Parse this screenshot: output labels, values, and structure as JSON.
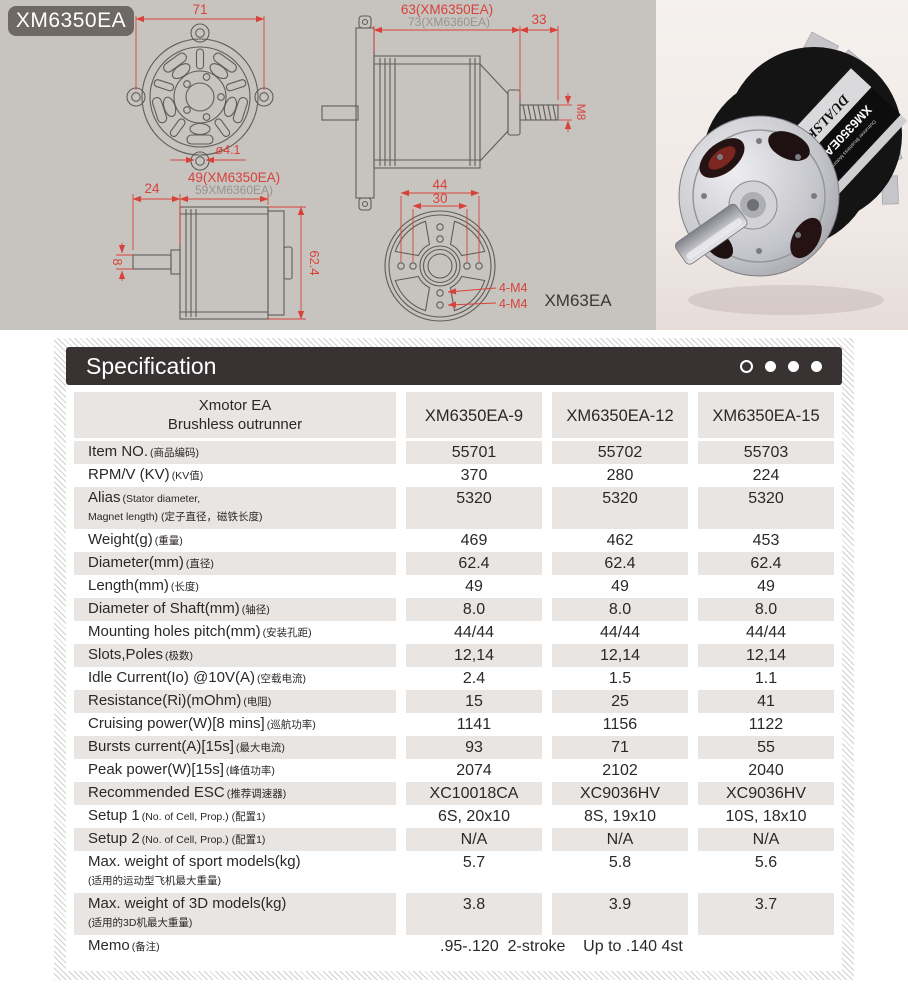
{
  "page": {
    "model_badge": "XM6350EA"
  },
  "drawings": {
    "front": {
      "dim_width": "71",
      "dim_hole": "ø4.1"
    },
    "side_top": {
      "dim_len_a": "63(XM6350EA)",
      "dim_len_b": "73(XM6360EA)",
      "dim_shaft": "33",
      "dim_thread": "M8"
    },
    "side_bottom": {
      "dim_shaft_len": "24",
      "dim_len_a": "49(XM6350EA)",
      "dim_len_b": "59XM6360EA)",
      "dim_shaft_dia": "8",
      "dim_body_dia": "62.4"
    },
    "rear": {
      "dim_outer_pitch": "44",
      "dim_inner_pitch": "30",
      "dim_screws_a": "4-M4",
      "dim_screws_b": "4-M4",
      "view_label": "XM63EA"
    }
  },
  "photo": {
    "brand": "DUALSKY",
    "model": "XM6350EA-15",
    "sub": "Outrunner Brushless Motors",
    "kv": "224rpm/V"
  },
  "spec": {
    "title": "Specification",
    "header": {
      "label_line1": "Xmotor EA",
      "label_line2": "Brushless outrunner",
      "columns": [
        "XM6350EA-9",
        "XM6350EA-12",
        "XM6350EA-15"
      ]
    },
    "rows": [
      {
        "label": "Item NO.",
        "note": "(商品编码)",
        "values": [
          "55701",
          "55702",
          "55703"
        ]
      },
      {
        "label": "RPM/V (KV)",
        "note": "(KV值)",
        "values": [
          "370",
          "280",
          "224"
        ]
      },
      {
        "label": "Alias",
        "note": "(Stator diameter,",
        "sub": "Magnet length) (定子直径，磁铁长度)",
        "values": [
          "5320",
          "5320",
          "5320"
        ]
      },
      {
        "label": "Weight(g)",
        "note": "(重量)",
        "values": [
          "469",
          "462",
          "453"
        ]
      },
      {
        "label": "Diameter(mm)",
        "note": "(直径)",
        "values": [
          "62.4",
          "62.4",
          "62.4"
        ]
      },
      {
        "label": "Length(mm)",
        "note": "(长度)",
        "values": [
          "49",
          "49",
          "49"
        ]
      },
      {
        "label": "Diameter of Shaft(mm)",
        "note": "(轴径)",
        "values": [
          "8.0",
          "8.0",
          "8.0"
        ]
      },
      {
        "label": "Mounting holes pitch(mm)",
        "note": "(安装孔距)",
        "values": [
          "44/44",
          "44/44",
          "44/44"
        ]
      },
      {
        "label": "Slots,Poles",
        "note": "(极数)",
        "values": [
          "12,14",
          "12,14",
          "12,14"
        ]
      },
      {
        "label": "Idle Current(Io) @10V(A)",
        "note": "(空载电流)",
        "values": [
          "2.4",
          "1.5",
          "1.1"
        ]
      },
      {
        "label": "Resistance(Ri)(mOhm)",
        "note": "(电阻)",
        "values": [
          "15",
          "25",
          "41"
        ]
      },
      {
        "label": "Cruising power(W)[8 mins]",
        "note": "(巡航功率)",
        "values": [
          "1141",
          "1156",
          "1122"
        ]
      },
      {
        "label": "Bursts current(A)[15s]",
        "note": "(最大电流)",
        "values": [
          "93",
          "71",
          "55"
        ]
      },
      {
        "label": "Peak power(W)[15s]",
        "note": "(峰值功率)",
        "values": [
          "2074",
          "2102",
          "2040"
        ]
      },
      {
        "label": "Recommended ESC",
        "note": "(推荐调速器)",
        "values": [
          "XC10018CA",
          "XC9036HV",
          "XC9036HV"
        ]
      },
      {
        "label": "Setup 1",
        "note": "(No. of Cell, Prop.) (配置1)",
        "values": [
          "6S, 20x10",
          "8S, 19x10",
          "10S, 18x10"
        ]
      },
      {
        "label": "Setup 2",
        "note": "(No. of Cell, Prop.) (配置1)",
        "values": [
          "N/A",
          "N/A",
          "N/A"
        ]
      },
      {
        "label": "Max. weight of sport models(kg)",
        "note": "",
        "sub": "(适用的运动型飞机最大重量)",
        "values": [
          "5.7",
          "5.8",
          "5.6"
        ]
      },
      {
        "label": "Max. weight of 3D models(kg)",
        "note": "",
        "sub": "(适用的3D机最大重量)",
        "values": [
          "3.8",
          "3.9",
          "3.7"
        ]
      },
      {
        "label": "Memo",
        "note": "(备注)",
        "values": [
          ".95-.120  2-stroke    Up to .140 4st"
        ],
        "span": true
      }
    ]
  }
}
